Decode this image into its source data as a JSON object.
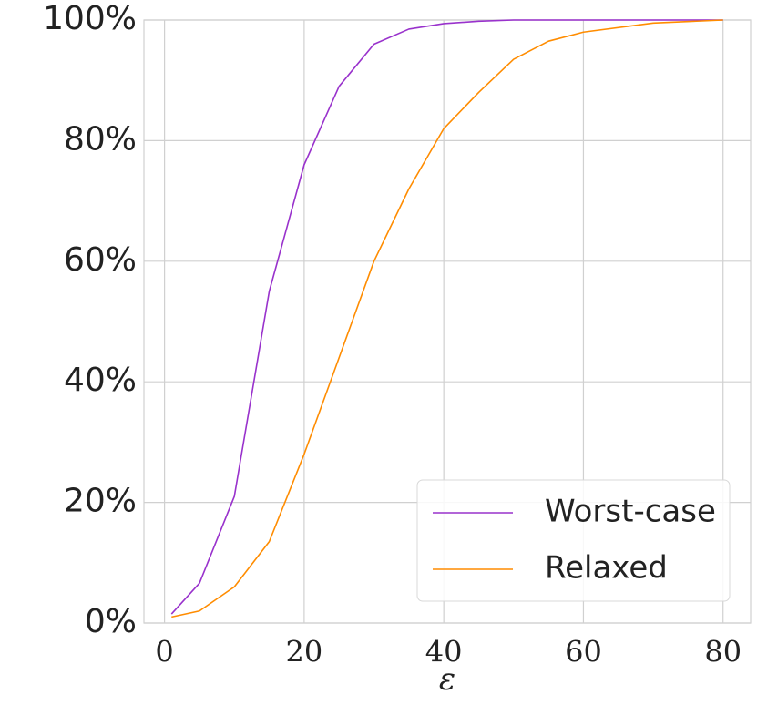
{
  "chart_data": {
    "type": "line",
    "x_label": "ε",
    "x": [
      1,
      5,
      10,
      15,
      20,
      25,
      30,
      35,
      40,
      45,
      50,
      55,
      60,
      70,
      80
    ],
    "series": [
      {
        "name": "Worst-case",
        "color": "#9932cc",
        "values": [
          1.5,
          6.6,
          21,
          55,
          76,
          89,
          96,
          98.5,
          99.4,
          99.8,
          100,
          100,
          100,
          100,
          100
        ]
      },
      {
        "name": "Relaxed",
        "color": "#ff8c00",
        "values": [
          1,
          2,
          6,
          13.5,
          28,
          44,
          60,
          72,
          82,
          88,
          93.5,
          96.5,
          98,
          99.5,
          100
        ]
      }
    ],
    "xlim": [
      -2.95,
      83.95
    ],
    "xticks": [
      0,
      20,
      40,
      60,
      80
    ],
    "ylim": [
      0,
      100
    ],
    "yticks": [
      {
        "value": 0,
        "label": "0%"
      },
      {
        "value": 20,
        "label": "20%"
      },
      {
        "value": 40,
        "label": "40%"
      },
      {
        "value": 60,
        "label": "60%"
      },
      {
        "value": 80,
        "label": "80%"
      },
      {
        "value": 100,
        "label": "100%"
      }
    ],
    "grid": true,
    "legend": "lower right"
  }
}
